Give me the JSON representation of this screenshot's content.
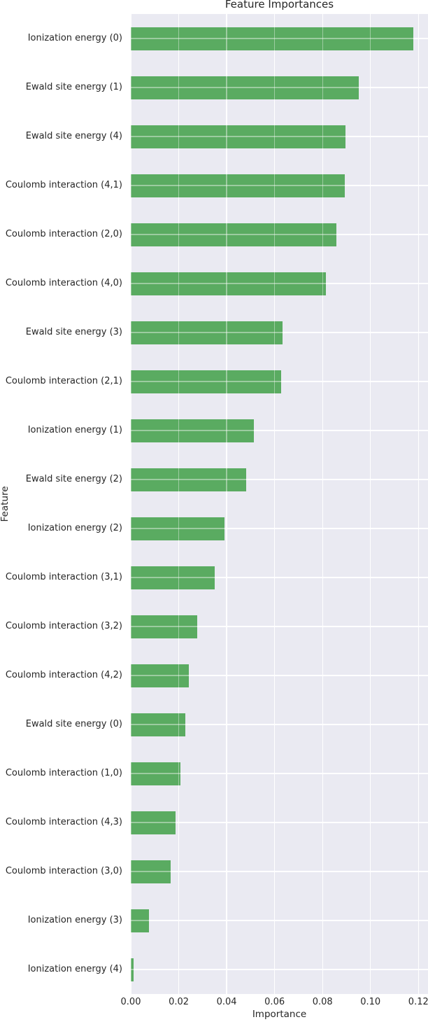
{
  "chart_data": {
    "type": "bar",
    "orientation": "horizontal",
    "title": "Feature Importances",
    "xlabel": "Importance",
    "ylabel": "Feature",
    "categories": [
      "Ionization energy (0)",
      "Ewald site energy (1)",
      "Ewald site energy (4)",
      "Coulomb interaction (4,1)",
      "Coulomb interaction (2,0)",
      "Coulomb interaction (4,0)",
      "Ewald site energy (3)",
      "Coulomb interaction (2,1)",
      "Ionization energy (1)",
      "Ewald site energy (2)",
      "Ionization energy (2)",
      "Coulomb interaction (3,1)",
      "Coulomb interaction (3,2)",
      "Coulomb interaction (4,2)",
      "Ewald site energy (0)",
      "Coulomb interaction (1,0)",
      "Coulomb interaction (4,3)",
      "Coulomb interaction (3,0)",
      "Ionization energy (3)",
      "Ionization energy (4)"
    ],
    "values": [
      0.118,
      0.095,
      0.0896,
      0.0892,
      0.0857,
      0.0813,
      0.0633,
      0.0628,
      0.0513,
      0.0481,
      0.0391,
      0.0349,
      0.0276,
      0.0241,
      0.0229,
      0.0206,
      0.0188,
      0.0165,
      0.0077,
      0.0011
    ],
    "xlim": [
      0,
      0.124
    ],
    "xticks": [
      0,
      0.02,
      0.04,
      0.06,
      0.08,
      0.1,
      0.12
    ],
    "xtick_labels": [
      "0.00",
      "0.02",
      "0.04",
      "0.06",
      "0.08",
      "0.10",
      "0.12"
    ],
    "grid": true,
    "legend": null,
    "colors": {
      "bar": "#5aab61",
      "plot_background": "#eaeaf2",
      "grid": "#ffffff",
      "grid_over_bars": "rgba(255,255,255,0.4)",
      "text": "#262626",
      "figure_background": "#ffffff"
    }
  }
}
